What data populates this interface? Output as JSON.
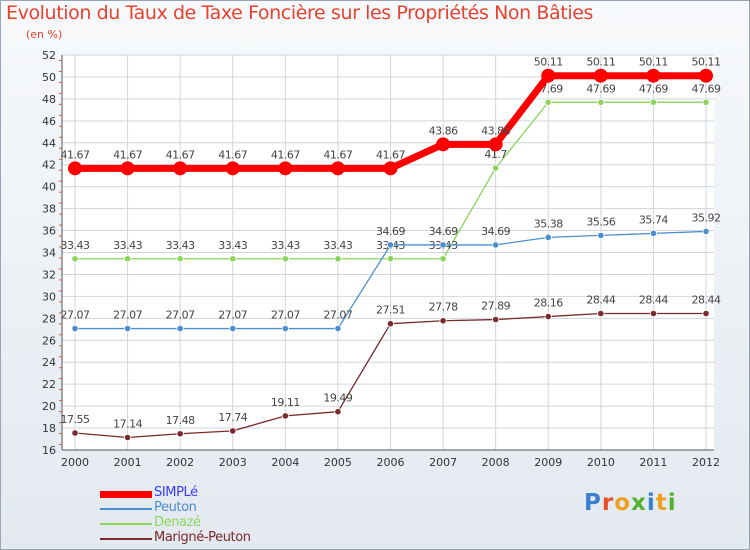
{
  "chart_data": {
    "type": "line",
    "title": "Evolution du Taux de Taxe Foncière sur les Propriétés Non Bâties",
    "unit_label": "(en %)",
    "xlabel": "",
    "ylabel": "",
    "ylim": [
      16,
      52
    ],
    "yticks": [
      16,
      18,
      20,
      22,
      24,
      26,
      28,
      30,
      32,
      34,
      36,
      38,
      40,
      42,
      44,
      46,
      48,
      50,
      52
    ],
    "categories": [
      "2000",
      "2001",
      "2002",
      "2003",
      "2004",
      "2005",
      "2006",
      "2007",
      "2008",
      "2009",
      "2010",
      "2011",
      "2012"
    ],
    "grid": true,
    "series": [
      {
        "name": "SIMPLé",
        "color": "#ff0000",
        "values": [
          41.67,
          41.67,
          41.67,
          41.67,
          41.67,
          41.67,
          41.67,
          43.86,
          43.86,
          50.11,
          50.11,
          50.11,
          50.11
        ],
        "labels": [
          "41.67",
          "41.67",
          "41.67",
          "41.67",
          "41.67",
          "41.67",
          "41.67",
          "43.86",
          "43.86",
          "50.11",
          "50.11",
          "50.11",
          "50.11"
        ]
      },
      {
        "name": "Peuton",
        "color": "#4a8ed0",
        "values": [
          27.07,
          27.07,
          27.07,
          27.07,
          27.07,
          27.07,
          34.69,
          34.69,
          34.69,
          35.38,
          35.56,
          35.74,
          35.92
        ],
        "labels": [
          "27.07",
          "27.07",
          "27.07",
          "27.07",
          "27.07",
          "27.07",
          "34.69",
          "34.69",
          "34.69",
          "35.38",
          "35.56",
          "35.74",
          "35.92"
        ]
      },
      {
        "name": "Denazé",
        "color": "#8cd45a",
        "values": [
          33.43,
          33.43,
          33.43,
          33.43,
          33.43,
          33.43,
          33.43,
          33.43,
          41.7,
          47.69,
          47.69,
          47.69,
          47.69
        ],
        "labels": [
          "33.43",
          "33.43",
          "33.43",
          "33.43",
          "33.43",
          "33.43",
          "33.43",
          "33.43",
          "41.7",
          "47.69",
          "47.69",
          "47.69",
          "47.69"
        ]
      },
      {
        "name": "Marigné-Peuton",
        "color": "#7a2a2a",
        "values": [
          17.55,
          17.14,
          17.48,
          17.74,
          19.11,
          19.49,
          27.51,
          27.78,
          27.89,
          28.16,
          28.44,
          28.44,
          28.44
        ],
        "labels": [
          "17.55",
          "17.14",
          "17.48",
          "17.74",
          "19.11",
          "19.49",
          "27.51",
          "27.78",
          "27.89",
          "28.16",
          "28.44",
          "28.44",
          "28.44"
        ]
      }
    ],
    "legend_position": "bottom-left"
  },
  "branding": {
    "logo_letters": [
      "P",
      "r",
      "o",
      "x",
      "i",
      "t",
      "i"
    ],
    "logo_colors": [
      "#3a7fd0",
      "#e8502a",
      "#f0a020",
      "#55b030",
      "#3a7fd0",
      "#f0a020",
      "#55b030"
    ]
  },
  "colors": {
    "title": "#e7422f",
    "grid": "#cfd6de",
    "axis": "#555555",
    "tick_text": "#333333",
    "label_text": "#444444"
  }
}
